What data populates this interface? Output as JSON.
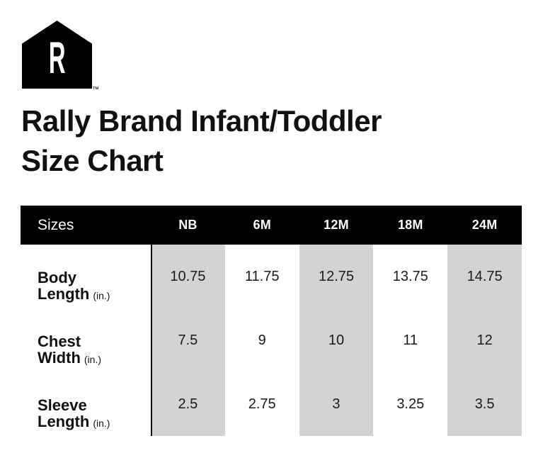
{
  "brand": {
    "logo_letter": "R",
    "trademark": "™"
  },
  "title": {
    "line1": "Rally Brand Infant/Toddler",
    "line2": "Size Chart"
  },
  "table": {
    "header": {
      "label": "Sizes",
      "columns": [
        "NB",
        "6M",
        "12M",
        "18M",
        "24M"
      ]
    },
    "rows": [
      {
        "line1": "Body",
        "line2": "Length",
        "unit": "(in.)",
        "values": [
          "10.75",
          "11.75",
          "12.75",
          "13.75",
          "14.75"
        ]
      },
      {
        "line1": "Chest",
        "line2": "Width",
        "unit": "(in.)",
        "values": [
          "7.5",
          "9",
          "10",
          "11",
          "12"
        ]
      },
      {
        "line1": "Sleeve",
        "line2": "Length",
        "unit": "(in.)",
        "values": [
          "2.5",
          "2.75",
          "3",
          "3.25",
          "3.5"
        ]
      }
    ]
  },
  "colors": {
    "header_bg": "#000000",
    "header_text": "#ffffff",
    "stripe": "#d1d3d4",
    "text": "#1a1a1a"
  },
  "chart_data": {
    "type": "table",
    "title": "Rally Brand Infant/Toddler Size Chart",
    "columns": [
      "Sizes",
      "NB",
      "6M",
      "12M",
      "18M",
      "24M"
    ],
    "rows": [
      [
        "Body Length (in.)",
        "10.75",
        "11.75",
        "12.75",
        "13.75",
        "14.75"
      ],
      [
        "Chest Width (in.)",
        "7.5",
        "9",
        "10",
        "11",
        "12"
      ],
      [
        "Sleeve Length (in.)",
        "2.5",
        "2.75",
        "3",
        "3.25",
        "3.5"
      ]
    ],
    "striped_columns": [
      "NB",
      "12M",
      "24M"
    ]
  }
}
